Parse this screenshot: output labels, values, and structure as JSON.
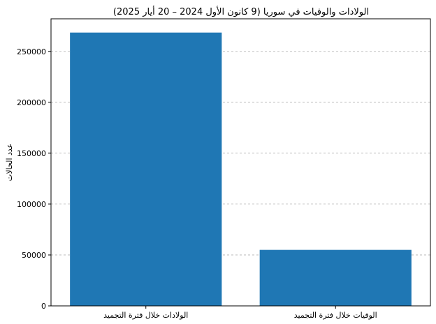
{
  "chart_data": {
    "type": "bar",
    "title": "الولادات والوفيات في سوريا (9 كانون الأول 2024 – 20 أيار 2025)",
    "xlabel": "",
    "ylabel": "عدد الحالات",
    "categories": [
      "الولادات خلال فترة التجميد",
      "الوفيات خلال فترة التجميد"
    ],
    "values": [
      268500,
      55000
    ],
    "ylim": [
      0,
      282000
    ],
    "yticks": [
      0,
      50000,
      100000,
      150000,
      200000,
      250000
    ],
    "ytick_labels": [
      "0",
      "50000",
      "100000",
      "150000",
      "200000",
      "250000"
    ],
    "grid": "y-dashed",
    "bar_color": "#1f77b4",
    "grid_color": "#b0b0b0"
  }
}
